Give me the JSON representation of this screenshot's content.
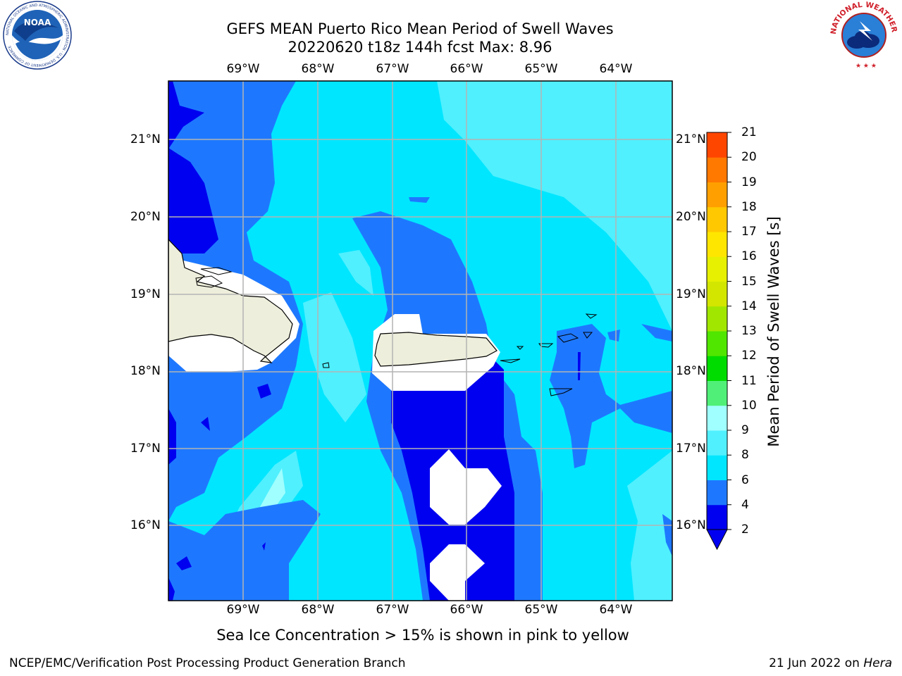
{
  "header": {
    "title_line1": "GEFS MEAN Puerto Rico Mean Period of Swell Waves",
    "title_line2": "20220620 t18z 144h fcst   Max: 8.96"
  },
  "logos": {
    "left": "NOAA",
    "left_ring": "NATIONAL OCEANIC AND ATMOSPHERIC ADMINISTRATION · U.S. DEPARTMENT OF COMMERCE",
    "right_ring": "NATIONAL WEATHER SERVICE"
  },
  "map": {
    "lon_labels": [
      "69°W",
      "68°W",
      "67°W",
      "66°W",
      "65°W",
      "64°W"
    ],
    "lat_labels": [
      "21°N",
      "20°N",
      "19°N",
      "18°N",
      "17°N",
      "16°N"
    ]
  },
  "colorbar": {
    "label": "Mean Period of Swell Waves [s]",
    "ticks": [
      "2",
      "4",
      "6",
      "8",
      "9",
      "10",
      "11",
      "12",
      "13",
      "14",
      "15",
      "16",
      "17",
      "18",
      "19",
      "20",
      "21"
    ],
    "colors": [
      "#0000f0",
      "#1e78ff",
      "#00e6ff",
      "#50f0ff",
      "#a0ffff",
      "#50f078",
      "#00dc00",
      "#50e600",
      "#a0e600",
      "#d2e600",
      "#e6f000",
      "#ffe600",
      "#ffc800",
      "#ffa000",
      "#ff7800",
      "#ff4600",
      "#ff0000"
    ],
    "extend_color": "#0000f0"
  },
  "note": "Sea Ice Concentration > 15% is shown in pink to yellow",
  "footer": {
    "left": "NCEP/EMC/Verification Post Processing Product Generation Branch",
    "date": "21 Jun 2022 on ",
    "machine": "Hera"
  }
}
